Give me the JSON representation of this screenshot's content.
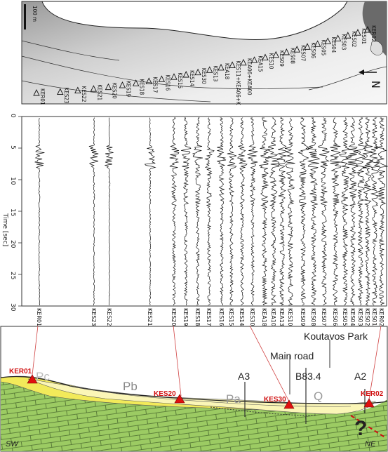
{
  "map": {
    "scale_label": "100 m",
    "north_label": "N",
    "stations": [
      {
        "label": "KER01"
      },
      {
        "label": "KES23"
      },
      {
        "label": "KES22"
      },
      {
        "label": "KES21"
      },
      {
        "label": "KES20"
      },
      {
        "label": "KES19"
      },
      {
        "label": "KES18"
      },
      {
        "label": "KES17"
      },
      {
        "label": "KES16"
      },
      {
        "label": "KES15"
      },
      {
        "label": "KES14"
      },
      {
        "label": "KES30"
      },
      {
        "label": "KES13"
      },
      {
        "label": "KEA18"
      },
      {
        "label": "KES11+KEA06+KEA05"
      },
      {
        "label": "KEA06+KEA00"
      },
      {
        "label": "KEA15"
      },
      {
        "label": "KES10"
      },
      {
        "label": "KES09"
      },
      {
        "label": "KES08"
      },
      {
        "label": "KES07"
      },
      {
        "label": "KES06"
      },
      {
        "label": "KES05"
      },
      {
        "label": "KES04"
      },
      {
        "label": "KES03"
      },
      {
        "label": "KES02"
      },
      {
        "label": "KES01"
      },
      {
        "label": "KER02"
      }
    ]
  },
  "seismograms": {
    "ylabel": "Time [sec]",
    "yticks": [
      "0",
      "5",
      "10",
      "15",
      "20",
      "25",
      "30"
    ],
    "traces": [
      "KER01",
      "KES23",
      "KES22",
      "KES21",
      "KES20",
      "KES19",
      "KES18",
      "KES17",
      "KES16",
      "KES15",
      "KES14",
      "KES30",
      "KEA18",
      "KEA10",
      "KEA13",
      "KES10",
      "KES09",
      "KES08",
      "KES07",
      "KES06",
      "KES05",
      "KES04",
      "KES03",
      "KES02",
      "KES01",
      "KER02"
    ]
  },
  "section": {
    "park_label": "Koutavos Park",
    "road_label": "Main road",
    "units": {
      "pc": "Pc",
      "pb": "Pb",
      "pa": "Pa",
      "q": "Q"
    },
    "wells": {
      "a3": "A3",
      "b83": "B83.4",
      "a2": "A2"
    },
    "markers": {
      "ker01": "KER01",
      "kes20": "KES20",
      "kes30": "KES30",
      "ker02": "KER02"
    },
    "question": "?",
    "sw": "SW",
    "ne": "NE"
  }
}
